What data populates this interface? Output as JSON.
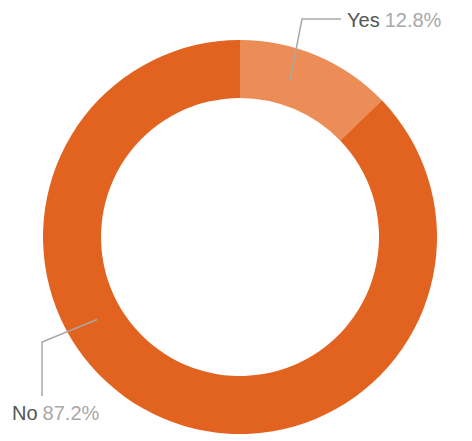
{
  "chart_data": {
    "type": "pie",
    "categories": [
      "Yes",
      "No"
    ],
    "values": [
      12.8,
      87.2
    ],
    "value_labels": [
      "12.8%",
      "87.2%"
    ],
    "colors": [
      "#ec8c57",
      "#e2631f"
    ],
    "data_labels": true
  }
}
